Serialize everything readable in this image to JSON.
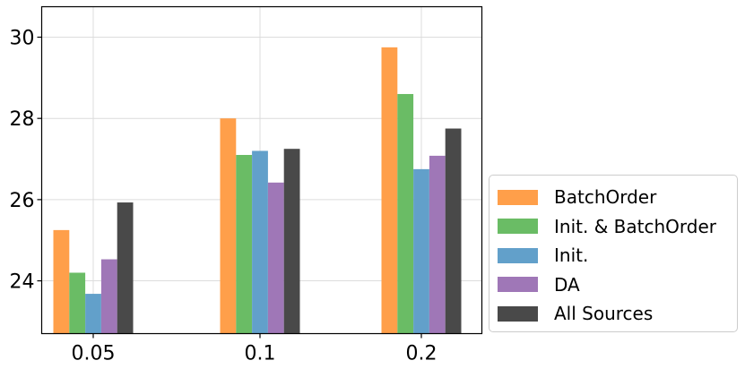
{
  "chart_data": {
    "type": "bar",
    "categories": [
      "0.05",
      "0.1",
      "0.2"
    ],
    "series": [
      {
        "name": "BatchOrder",
        "color": "#ff9f4a",
        "values": [
          25.25,
          28.0,
          29.75
        ]
      },
      {
        "name": "Init. & BatchOrder",
        "color": "#6abc65",
        "values": [
          24.2,
          27.1,
          28.6
        ]
      },
      {
        "name": "Init.",
        "color": "#62a0ca",
        "values": [
          23.68,
          27.2,
          26.75
        ]
      },
      {
        "name": "DA",
        "color": "#9f77b7",
        "values": [
          24.53,
          26.42,
          27.08
        ]
      },
      {
        "name": "All Sources",
        "color": "#494949",
        "values": [
          25.93,
          27.25,
          27.75
        ]
      }
    ],
    "yticks": [
      24,
      26,
      28,
      30
    ],
    "ylim": [
      22.7,
      30.75
    ],
    "title": "",
    "xlabel": "",
    "ylabel": "",
    "grid": true,
    "legend_position": "lower-right, outside plot"
  }
}
